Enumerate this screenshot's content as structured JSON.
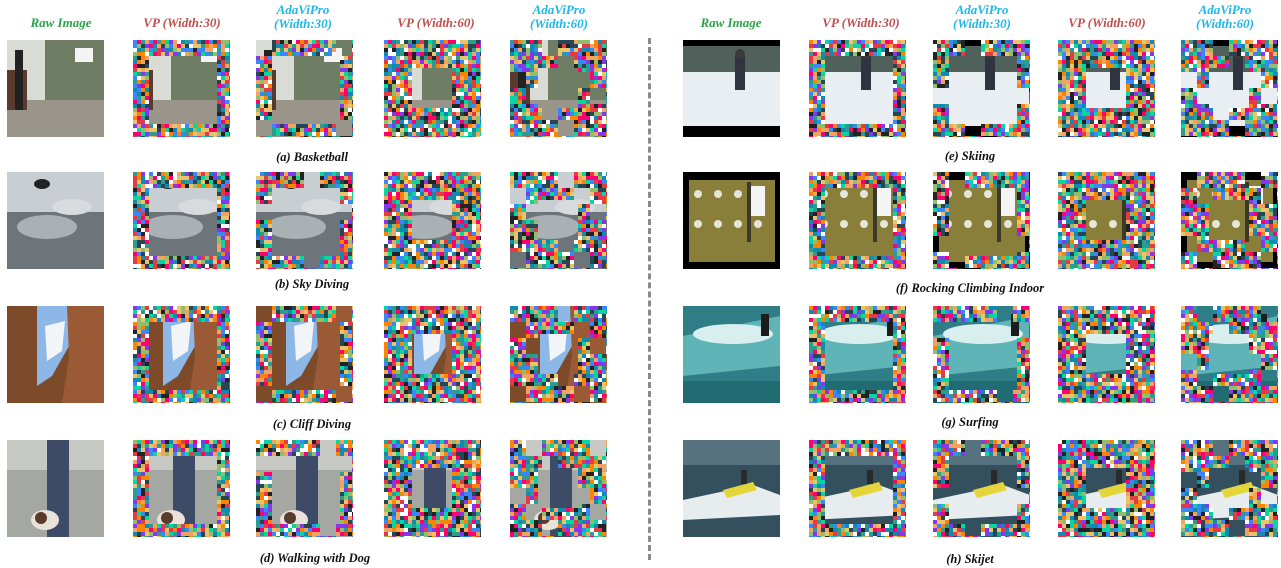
{
  "headers": {
    "raw": "Raw Image",
    "vp30": "VP (Width:30)",
    "ada30_line1": "AdaViPro",
    "ada30_line2": "(Width:30)",
    "vp60": "VP (Width:60)",
    "ada60_line1": "AdaViPro",
    "ada60_line2": "(Width:60)"
  },
  "captions": {
    "a": "(a) Basketball",
    "b": "(b) Sky Diving",
    "c": "(c) Cliff Diving",
    "d": "(d) Walking with Dog",
    "e": "(e) Skiing",
    "f": "(f) Rocking Climbing Indoor",
    "g": "(g) Surfing",
    "h": "(h) Skijet"
  },
  "colors": {
    "raw_header": "#2aa34a",
    "vp_header": "#c0504d",
    "adavipro_header": "#1fb8e8"
  }
}
